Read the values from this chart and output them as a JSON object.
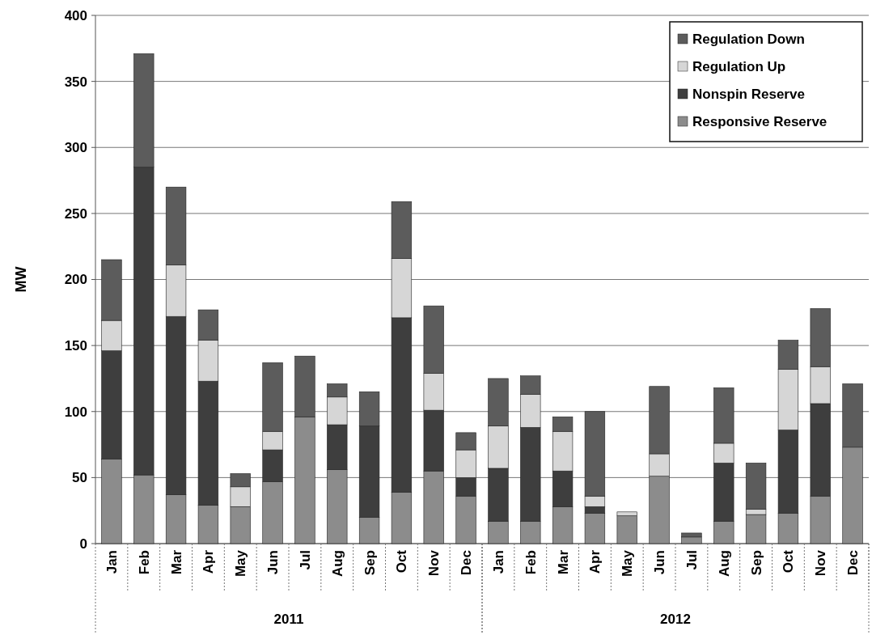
{
  "chart_data": {
    "type": "bar",
    "stacked": true,
    "ylabel": "MW",
    "categories": [
      "Jan",
      "Feb",
      "Mar",
      "Apr",
      "May",
      "Jun",
      "Jul",
      "Aug",
      "Sep",
      "Oct",
      "Nov",
      "Dec",
      "Jan",
      "Feb",
      "Mar",
      "Apr",
      "May",
      "Jun",
      "Jul",
      "Aug",
      "Sep",
      "Oct",
      "Nov",
      "Dec"
    ],
    "series": [
      {
        "name": "Responsive Reserve",
        "color": "#8c8c8c",
        "values": [
          64,
          52,
          37,
          29,
          28,
          47,
          96,
          56,
          20,
          39,
          55,
          36,
          17,
          17,
          28,
          23,
          21,
          51,
          5,
          17,
          22,
          23,
          36,
          73
        ]
      },
      {
        "name": "Nonspin Reserve",
        "color": "#3e3e3e",
        "values": [
          82,
          233,
          135,
          94,
          0,
          24,
          0,
          34,
          69,
          132,
          46,
          14,
          40,
          71,
          27,
          5,
          0,
          0,
          0,
          44,
          0,
          63,
          70,
          0
        ]
      },
      {
        "name": "Regulation Up",
        "color": "#d6d6d6",
        "values": [
          23,
          0,
          39,
          31,
          15,
          14,
          0,
          21,
          0,
          45,
          28,
          21,
          32,
          25,
          30,
          8,
          3,
          17,
          0,
          15,
          4,
          46,
          28,
          0
        ]
      },
      {
        "name": "Regulation Down",
        "color": "#5c5c5c",
        "values": [
          46,
          86,
          59,
          23,
          10,
          52,
          46,
          10,
          26,
          43,
          51,
          13,
          36,
          14,
          11,
          64,
          0,
          51,
          3,
          42,
          35,
          22,
          44,
          48
        ]
      }
    ],
    "ylim": [
      0,
      400
    ],
    "yticks": [
      0,
      50,
      100,
      150,
      200,
      250,
      300,
      350,
      400
    ],
    "grid": "y",
    "legend": "top right",
    "annotations": [
      "2011",
      "2012"
    ]
  }
}
